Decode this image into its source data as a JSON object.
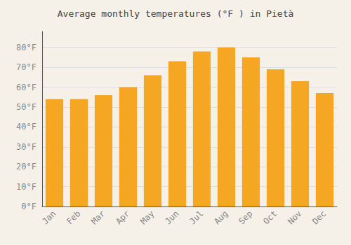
{
  "chart_data": {
    "type": "bar",
    "title": "Average monthly temperatures (°F ) in Pietà",
    "categories": [
      "Jan",
      "Feb",
      "Mar",
      "Apr",
      "May",
      "Jun",
      "Jul",
      "Aug",
      "Sep",
      "Oct",
      "Nov",
      "Dec"
    ],
    "values": [
      54,
      54,
      56,
      60,
      66,
      73,
      78,
      80,
      75,
      69,
      63,
      57
    ],
    "color": "#F5A623",
    "ylim": [
      0,
      88
    ],
    "yticks": [
      {
        "value": 0,
        "label": "0°F"
      },
      {
        "value": 10,
        "label": "10°F"
      },
      {
        "value": 20,
        "label": "20°F"
      },
      {
        "value": 30,
        "label": "30°F"
      },
      {
        "value": 40,
        "label": "40°F"
      },
      {
        "value": 50,
        "label": "50°F"
      },
      {
        "value": 60,
        "label": "60°F"
      },
      {
        "value": 70,
        "label": "70°F"
      },
      {
        "value": 80,
        "label": "80°F"
      }
    ],
    "grid": true
  }
}
